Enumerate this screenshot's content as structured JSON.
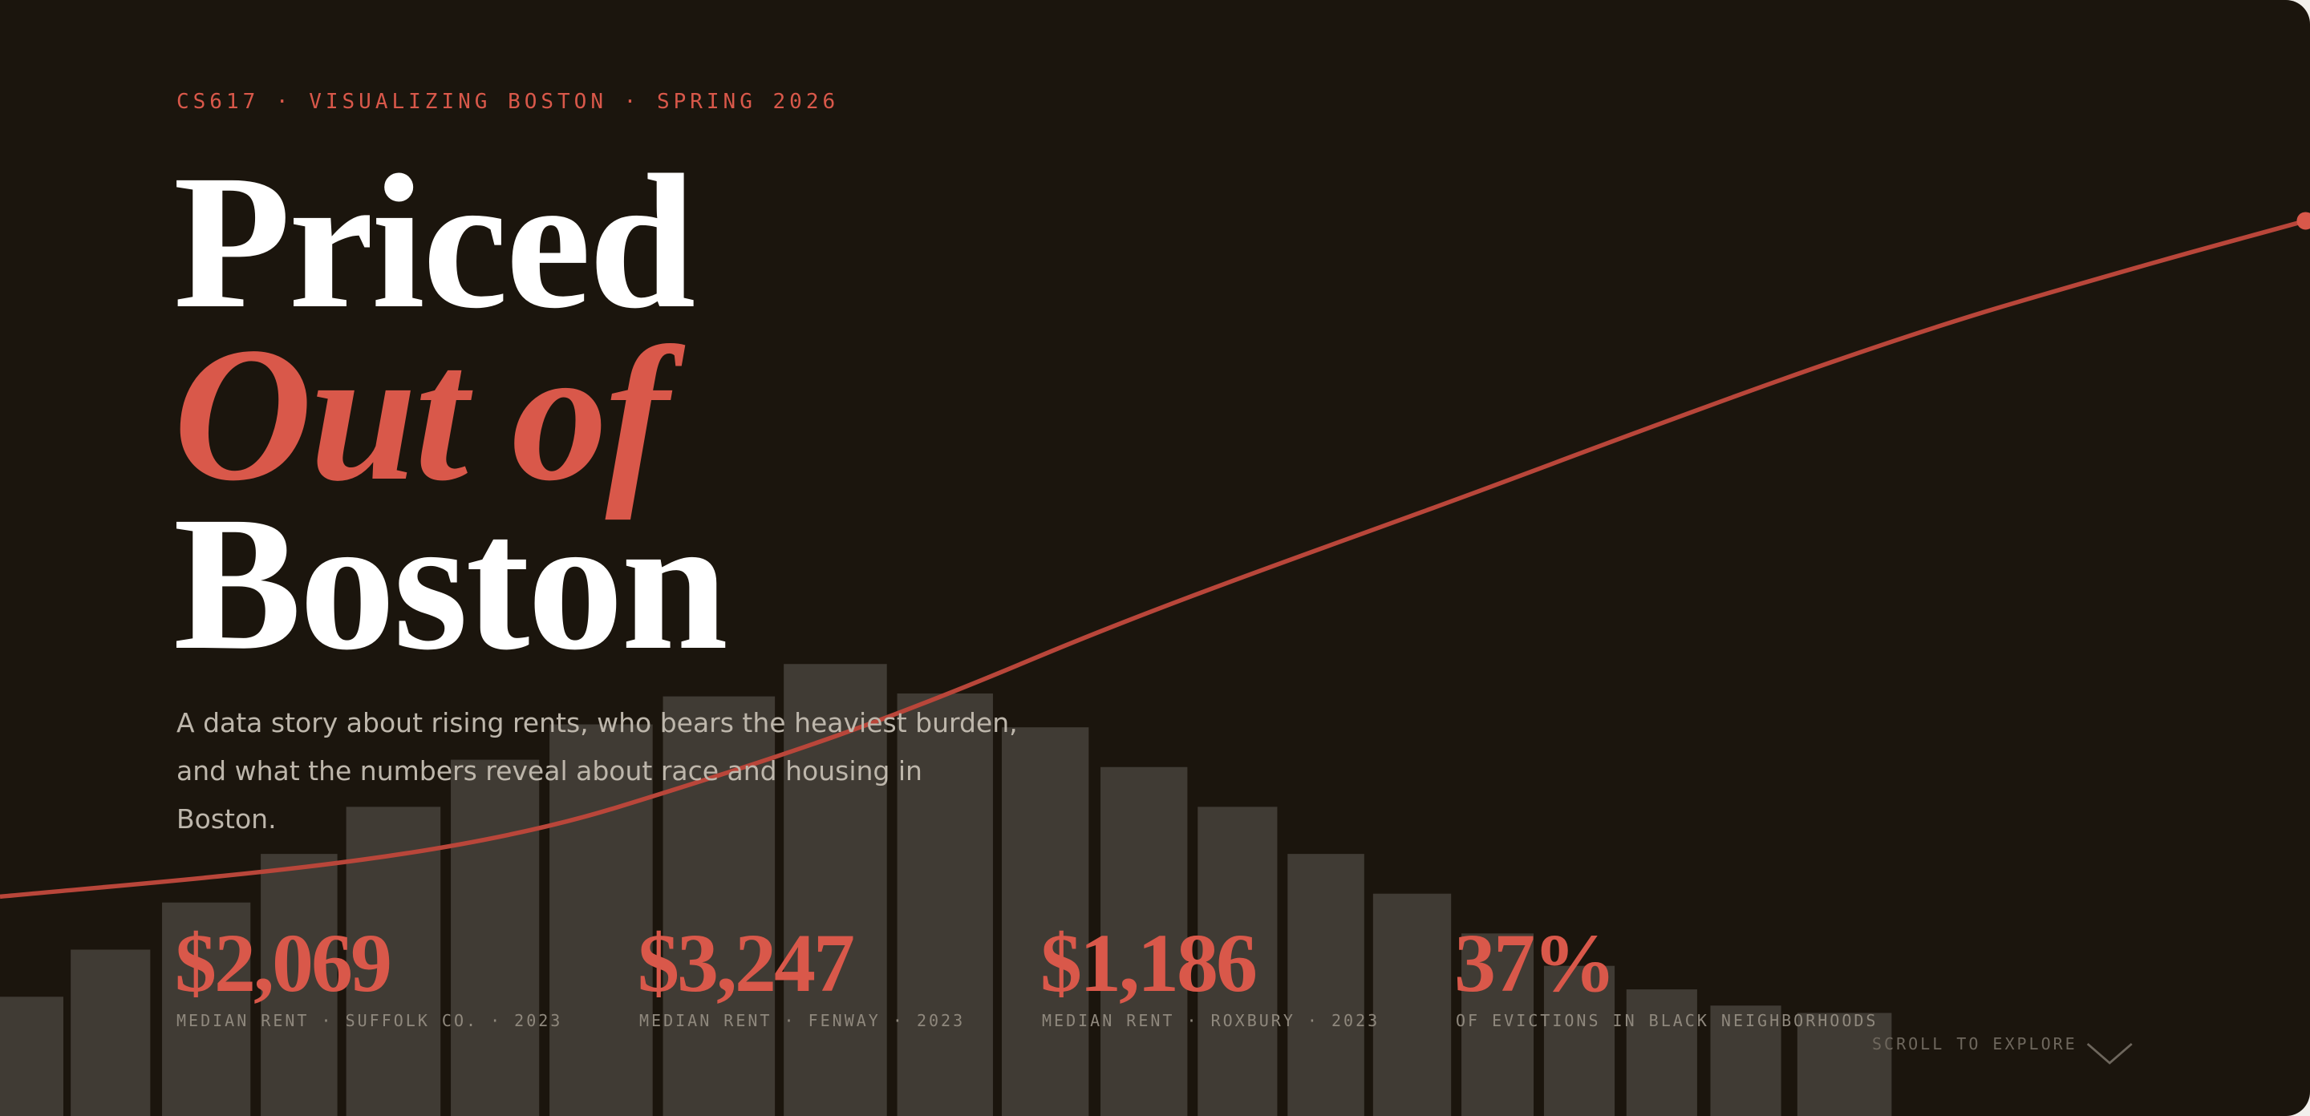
{
  "header": {
    "eyebrow": "CS617 · VISUALIZING BOSTON · SPRING 2026",
    "title": [
      "Priced",
      "Out of",
      "Boston"
    ],
    "description": "A data story about rising rents, who bears the heaviest burden, and what the numbers reveal about race and housing in Boston."
  },
  "stats": [
    {
      "value": "$2,069",
      "label": "MEDIAN RENT · SUFFOLK CO. · 2023"
    },
    {
      "value": "$3,247",
      "label": "MEDIAN RENT · FENWAY · 2023"
    },
    {
      "value": "$1,186",
      "label": "MEDIAN RENT · ROXBURY · 2023"
    },
    {
      "value": "37%",
      "label": "OF EVICTIONS IN BLACK NEIGHBORHOODS"
    }
  ],
  "scroll_hint": "SCROLL TO EXPLORE"
}
